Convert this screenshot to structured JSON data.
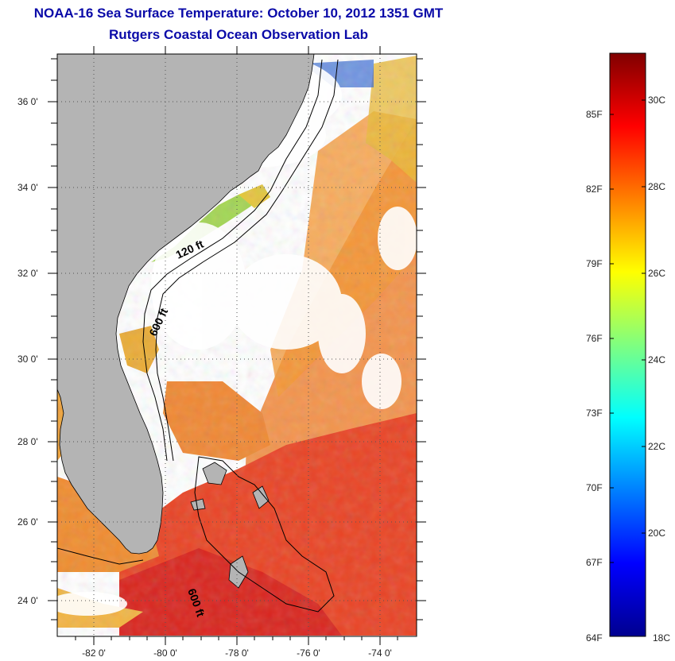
{
  "header": {
    "title": "NOAA-16 Sea Surface Temperature:  October 10, 2012 1351 GMT",
    "subtitle": "Rutgers Coastal Ocean Observation Lab"
  },
  "map": {
    "lat_range": [
      23,
      37
    ],
    "lon_range": [
      -83,
      -73
    ],
    "lat_ticks": [
      "36 0'",
      "34 0'",
      "32 0'",
      "30 0'",
      "28 0'",
      "26 0'",
      "24 0'"
    ],
    "lon_ticks": [
      "-82 0'",
      "-80 0'",
      "-78 0'",
      "-76 0'",
      "-74 0'"
    ],
    "contours": [
      "120 ft",
      "600 ft",
      "600 ft"
    ],
    "colors": {
      "land": "#b4b4b4",
      "no_data": "#ffffff",
      "axis": "#000000"
    }
  },
  "colorbar": {
    "fahrenheit": [
      "85F",
      "82F",
      "79F",
      "76F",
      "73F",
      "70F",
      "67F",
      "64F"
    ],
    "celsius": [
      "30C",
      "28C",
      "26C",
      "24C",
      "22C",
      "20C",
      "18C"
    ],
    "range_c": [
      18,
      31.5
    ],
    "colormap": "jet"
  }
}
